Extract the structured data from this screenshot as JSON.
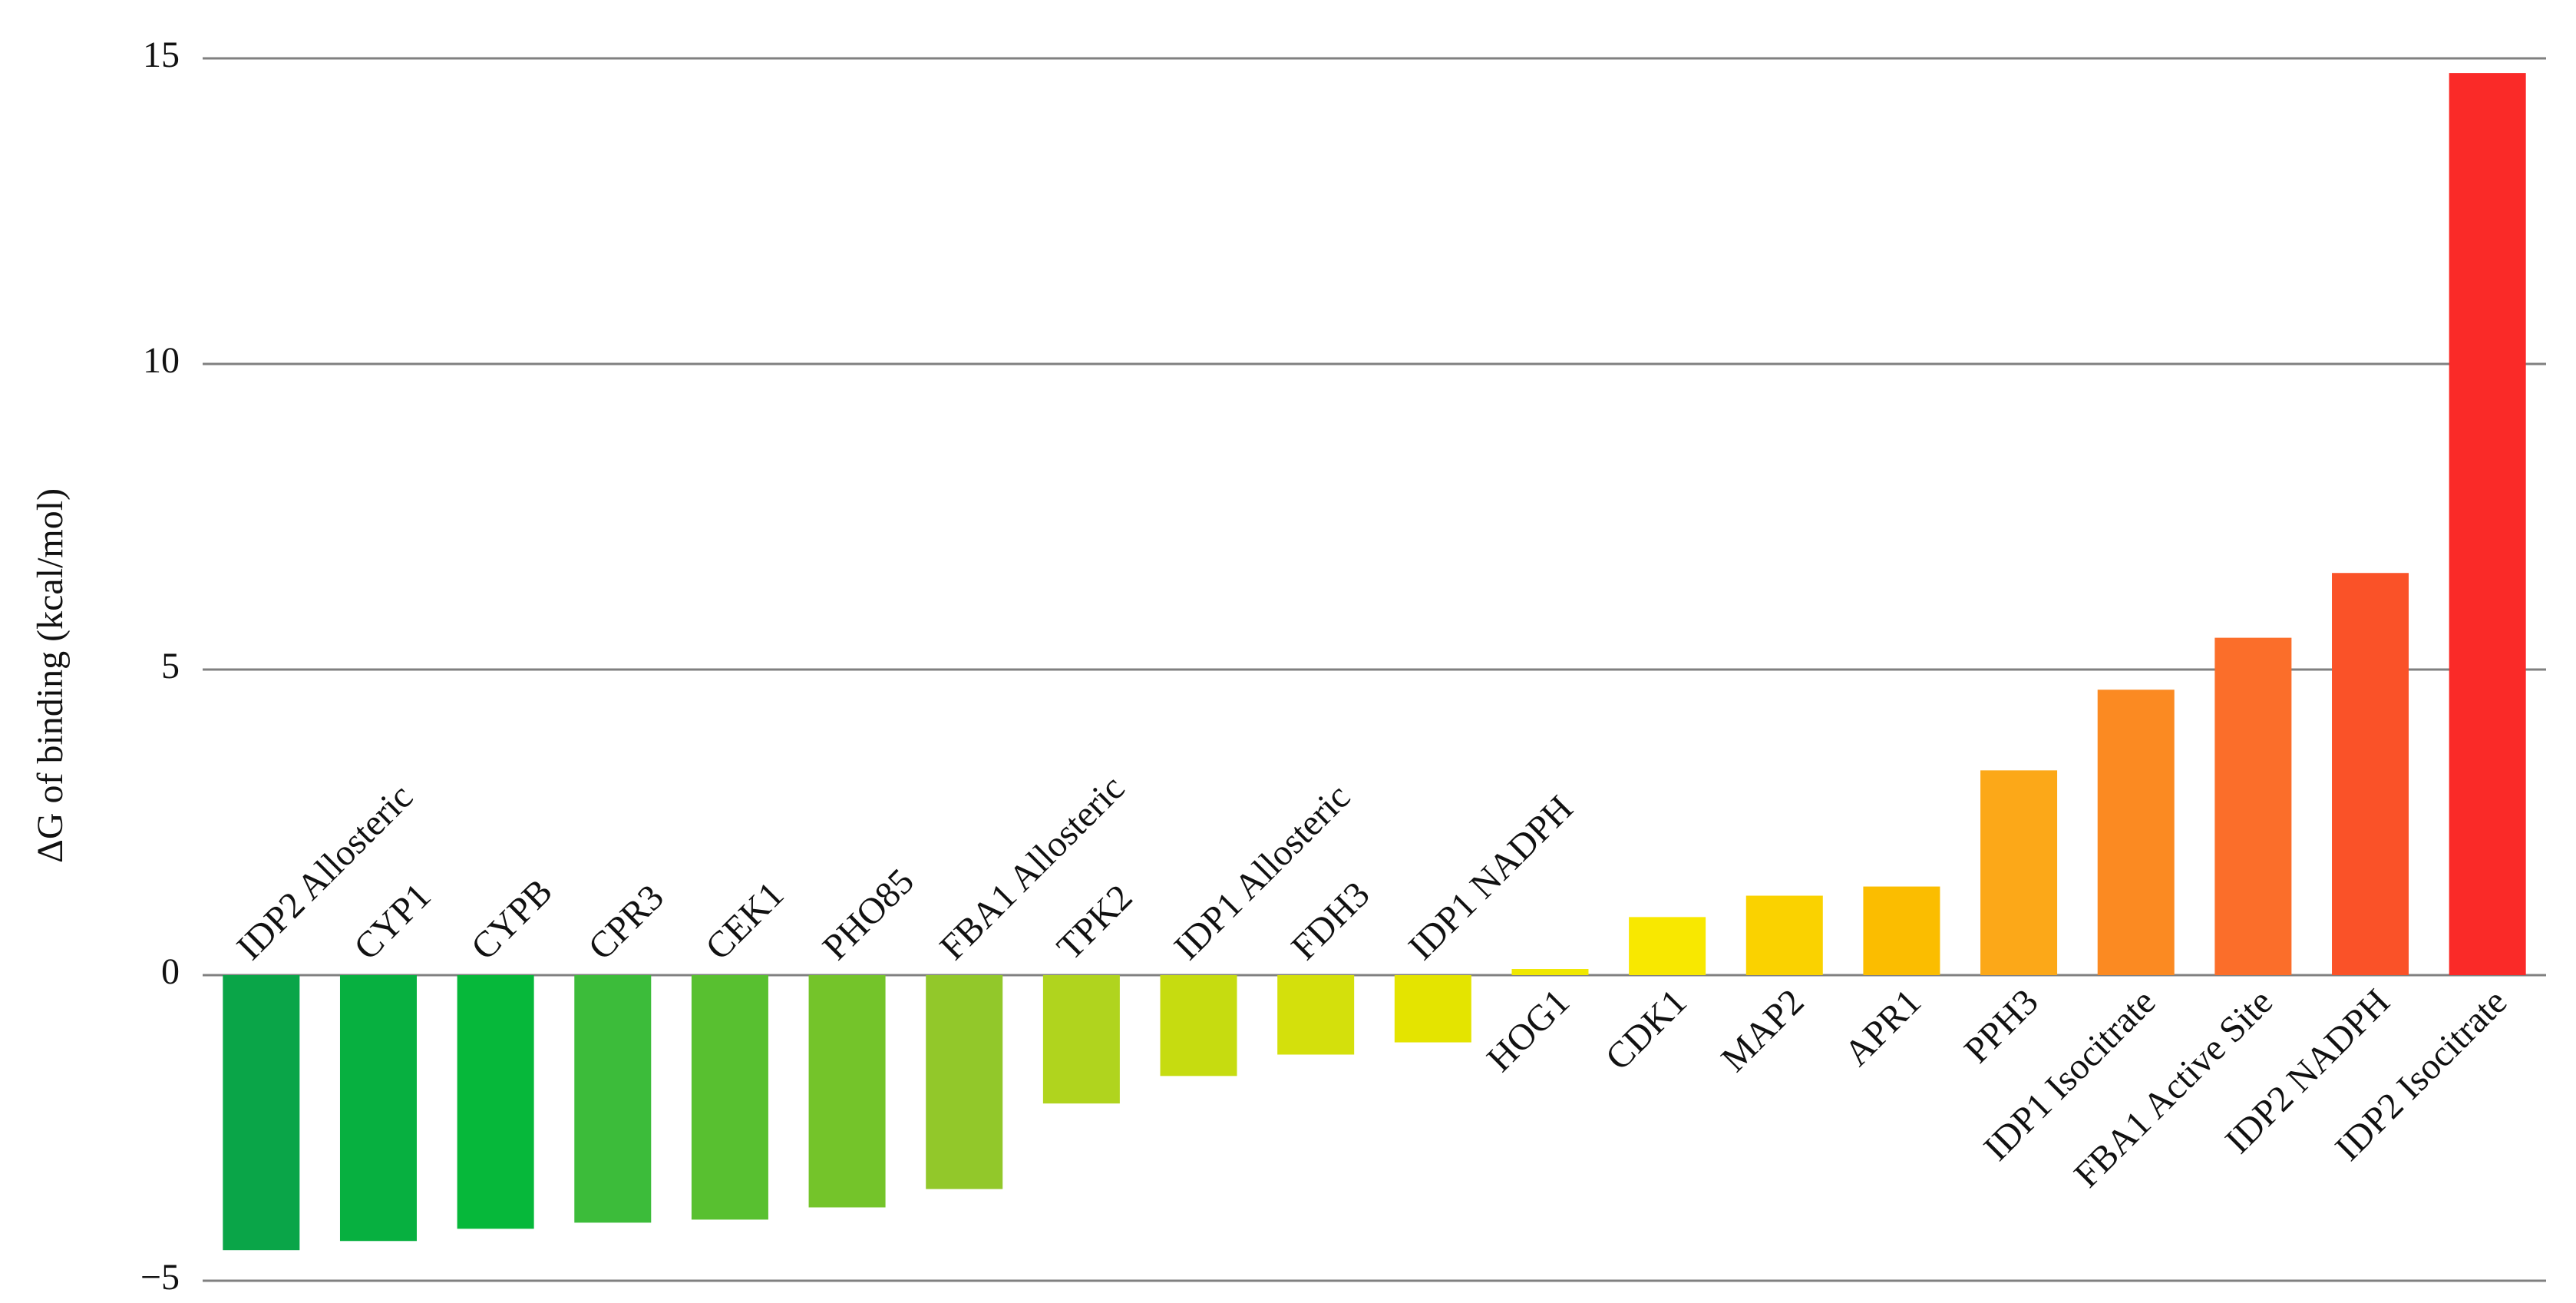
{
  "chart_data": {
    "type": "bar",
    "y_label": "ΔG of binding (kcal/mol)",
    "categories": [
      "IDP2 Allosteric",
      "CYP1",
      "CYPB",
      "CPR3",
      "CEK1",
      "PHO85",
      "FBA1 Allosteric",
      "TPK2",
      "IDP1 Allosteric",
      "FDH3",
      "IDP1 NADPH",
      "HOG1",
      "CDK1",
      "MAP2",
      "APR1",
      "PPH3",
      "IDP1 Isocitrate",
      "FBA1 Active Site",
      "IDP2 NADPH",
      "IDP2 Isocitrate"
    ],
    "values": [
      -4.5,
      -4.35,
      -4.15,
      -4.05,
      -4.0,
      -3.8,
      -3.5,
      -2.1,
      -1.65,
      -1.3,
      -1.1,
      0.1,
      0.95,
      1.3,
      1.45,
      3.35,
      4.67,
      5.52,
      6.58,
      14.76
    ],
    "colors": [
      "#0aa548",
      "#07b040",
      "#06b83a",
      "#3cbc3a",
      "#58c030",
      "#74c42a",
      "#92c82a",
      "#b0d41e",
      "#c6dc10",
      "#d4e00c",
      "#e4e400",
      "#f0e800",
      "#f8e800",
      "#fad200",
      "#fbbd00",
      "#fca818",
      "#fb8a22",
      "#fb6e2a",
      "#fa5228",
      "#fa2a28"
    ],
    "ylim": [
      -5,
      15
    ],
    "yticks": [
      {
        "value": -5,
        "label": "−5"
      },
      0,
      5,
      10,
      15
    ],
    "grid": true
  }
}
